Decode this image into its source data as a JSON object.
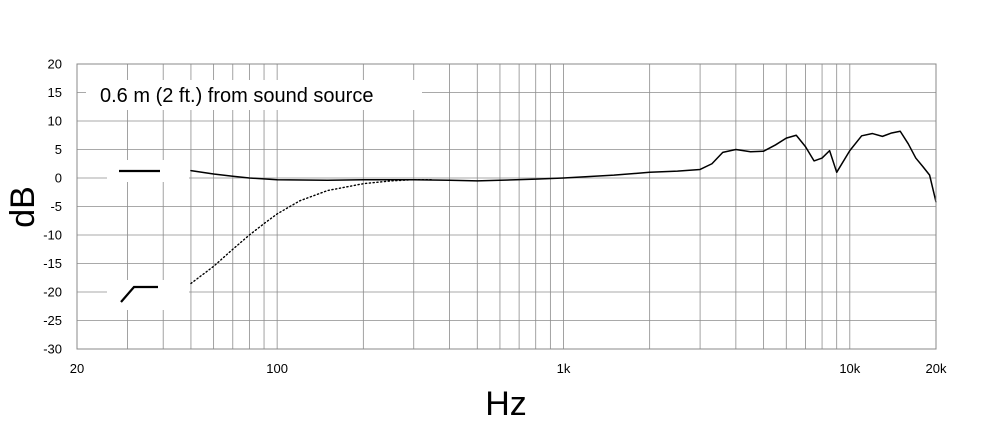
{
  "chart_data": {
    "type": "line",
    "title": "",
    "xlabel": "Hz",
    "ylabel": "dB",
    "xscale": "log",
    "xlim": [
      20,
      20000
    ],
    "ylim": [
      -30,
      20
    ],
    "grid": true,
    "x_ticks": [
      {
        "value": 20,
        "label": "20"
      },
      {
        "value": 100,
        "label": "100"
      },
      {
        "value": 1000,
        "label": "1k"
      },
      {
        "value": 10000,
        "label": "10k"
      },
      {
        "value": 20000,
        "label": "20k"
      }
    ],
    "y_ticks": [
      {
        "value": 20,
        "label": "20"
      },
      {
        "value": 15,
        "label": "15"
      },
      {
        "value": 10,
        "label": "10"
      },
      {
        "value": 5,
        "label": "5"
      },
      {
        "value": 0,
        "label": "0"
      },
      {
        "value": -5,
        "label": "-5"
      },
      {
        "value": -10,
        "label": "-10"
      },
      {
        "value": -15,
        "label": "-15"
      },
      {
        "value": -20,
        "label": "-20"
      },
      {
        "value": -25,
        "label": "-25"
      },
      {
        "value": -30,
        "label": "-30"
      }
    ],
    "annotation": "0.6 m (2 ft.) from sound source",
    "legend_placement": "left",
    "series": [
      {
        "style": "solid",
        "legend_icon": "flat-response-icon",
        "x": [
          50,
          60,
          70,
          80,
          100,
          150,
          200,
          300,
          400,
          500,
          600,
          800,
          1000,
          1500,
          2000,
          2500,
          3000,
          3300,
          3600,
          4000,
          4500,
          5000,
          5500,
          6000,
          6500,
          7000,
          7500,
          8000,
          8500,
          9000,
          10000,
          11000,
          12000,
          13000,
          14000,
          15000,
          16000,
          17000,
          18000,
          19000,
          20000
        ],
        "y": [
          1.3,
          0.7,
          0.3,
          0.0,
          -0.3,
          -0.4,
          -0.3,
          -0.3,
          -0.4,
          -0.5,
          -0.4,
          -0.2,
          0.0,
          0.5,
          1.0,
          1.2,
          1.5,
          2.5,
          4.5,
          5.0,
          4.6,
          4.7,
          5.8,
          7.0,
          7.5,
          5.5,
          3.0,
          3.5,
          4.8,
          1.0,
          4.8,
          7.4,
          7.8,
          7.3,
          7.9,
          8.2,
          6.0,
          3.5,
          2.0,
          0.5,
          -4.2
        ]
      },
      {
        "style": "dotted",
        "legend_icon": "low-cut-response-icon",
        "x": [
          50,
          60,
          70,
          80,
          90,
          100,
          120,
          150,
          200,
          250,
          300,
          350
        ],
        "y": [
          -18.5,
          -15.5,
          -12.5,
          -10.0,
          -8.0,
          -6.3,
          -4.0,
          -2.2,
          -1.0,
          -0.5,
          -0.3,
          -0.3
        ]
      }
    ]
  }
}
